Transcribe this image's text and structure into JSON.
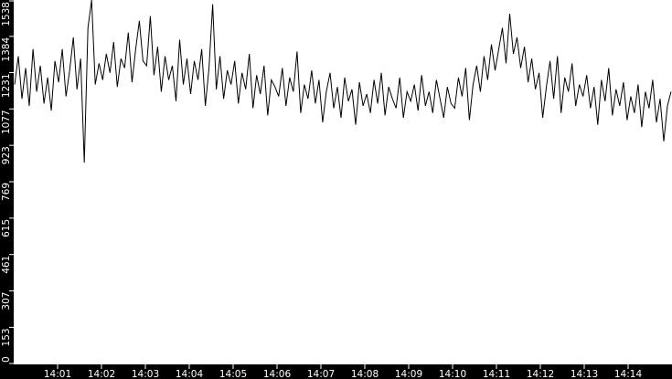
{
  "chart_data": {
    "type": "line",
    "title": "",
    "xlabel": "",
    "ylabel": "",
    "xlim": [
      "14:00:00",
      "14:15:00"
    ],
    "ylim": [
      0,
      1538
    ],
    "y_ticks": [
      "0",
      "153",
      "307",
      "461",
      "615",
      "769",
      "923",
      "1077",
      "1231",
      "1384",
      "1538"
    ],
    "x_ticks": [
      "14:01",
      "14:02",
      "14:03",
      "14:04",
      "14:05",
      "14:06",
      "14:07",
      "14:08",
      "14:09",
      "14:10",
      "14:11",
      "14:12",
      "14:13",
      "14:14"
    ],
    "grid": false,
    "legend": "none",
    "colors": {
      "background": "#ffffff",
      "frame": "#000000",
      "line": "#000000",
      "text": "#ffffff"
    },
    "series": [
      {
        "values": [
          1180,
          1300,
          1120,
          1250,
          1090,
          1330,
          1150,
          1260,
          1100,
          1210,
          1070,
          1280,
          1190,
          1330,
          1130,
          1240,
          1380,
          1160,
          1290,
          850,
          1420,
          1538,
          1180,
          1270,
          1200,
          1310,
          1230,
          1360,
          1170,
          1290,
          1250,
          1400,
          1190,
          1330,
          1450,
          1280,
          1260,
          1470,
          1220,
          1340,
          1150,
          1300,
          1200,
          1260,
          1110,
          1370,
          1180,
          1290,
          1140,
          1280,
          1200,
          1330,
          1090,
          1250,
          1520,
          1160,
          1300,
          1120,
          1240,
          1180,
          1280,
          1100,
          1230,
          1160,
          1310,
          1080,
          1220,
          1140,
          1260,
          1050,
          1200,
          1170,
          1130,
          1250,
          1090,
          1210,
          1150,
          1320,
          1060,
          1180,
          1120,
          1240,
          1100,
          1200,
          1020,
          1150,
          1230,
          1080,
          1170,
          1040,
          1210,
          1110,
          1160,
          1010,
          1190,
          1090,
          1140,
          1060,
          1200,
          1100,
          1230,
          1050,
          1170,
          1120,
          1080,
          1210,
          1040,
          1150,
          1110,
          1180,
          1070,
          1220,
          1090,
          1150,
          1060,
          1200,
          1120,
          1040,
          1170,
          1100,
          1080,
          1210,
          1130,
          1250,
          1030,
          1180,
          1260,
          1150,
          1300,
          1200,
          1350,
          1240,
          1330,
          1420,
          1270,
          1480,
          1310,
          1380,
          1250,
          1340,
          1190,
          1290,
          1160,
          1230,
          1040,
          1170,
          1280,
          1120,
          1300,
          1060,
          1210,
          1150,
          1270,
          1090,
          1180,
          1130,
          1220,
          1080,
          1170,
          1010,
          1200,
          1110,
          1250,
          1050,
          1160,
          1090,
          1190,
          1030,
          1130,
          1060,
          1180,
          1000,
          1150,
          1080,
          1200,
          1020,
          1120,
          940,
          1090,
          1150
        ]
      }
    ]
  }
}
